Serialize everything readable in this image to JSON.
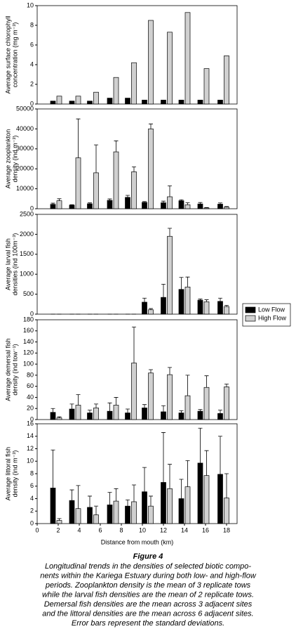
{
  "chart_data": [
    {
      "type": "bar",
      "ylabel": [
        "Average surface chlorophyll",
        "concentration (mg m⁻³)"
      ],
      "x": [
        1.8,
        3.6,
        5.3,
        7.2,
        8.9,
        10.5,
        12.3,
        14,
        15.8,
        17.7
      ],
      "xlim": [
        0,
        19
      ],
      "ylim": [
        0,
        10
      ],
      "yticks": [
        0,
        2,
        4,
        6,
        8,
        10
      ],
      "series": [
        {
          "color": "#000000",
          "values": [
            0.3,
            0.3,
            0.3,
            0.6,
            0.6,
            0.4,
            0.4,
            0.4,
            0.4,
            0.4
          ]
        },
        {
          "color": "#d0d0d0",
          "values": [
            0.8,
            0.8,
            1.2,
            2.7,
            4.2,
            8.5,
            7.3,
            9.3,
            3.6,
            4.9
          ]
        }
      ]
    },
    {
      "type": "bar",
      "ylabel": [
        "Average zooplankton",
        "density (ind m⁻³)"
      ],
      "x": [
        1.8,
        3.6,
        5.3,
        7.2,
        8.9,
        10.5,
        12.3,
        14,
        15.8,
        17.7
      ],
      "xlim": [
        0,
        19
      ],
      "ylim": [
        0,
        50000
      ],
      "yticks": [
        0,
        10000,
        20000,
        30000,
        40000,
        50000
      ],
      "series": [
        {
          "color": "#000000",
          "values": [
            2200,
            1800,
            2500,
            4200,
            5700,
            3200,
            3000,
            4000,
            2400,
            2300
          ],
          "errors": [
            600,
            200,
            500,
            700,
            1000,
            400,
            800,
            500,
            700,
            600
          ]
        },
        {
          "color": "#d0d0d0",
          "values": [
            4000,
            25500,
            18000,
            28500,
            18500,
            40000,
            6000,
            2000,
            400,
            800
          ],
          "errors": [
            1000,
            19500,
            14000,
            5500,
            2500,
            2500,
            5500,
            1000,
            200,
            300
          ]
        }
      ]
    },
    {
      "type": "bar",
      "ylabel": [
        "Average larval fish",
        "densities (ind 100m⁻³)"
      ],
      "x": [
        1.8,
        3.6,
        5.3,
        7.2,
        8.9,
        10.5,
        12.3,
        14,
        15.8,
        17.7
      ],
      "xlim": [
        0,
        19
      ],
      "ylim": [
        0,
        2500
      ],
      "yticks": [
        0,
        500,
        1000,
        1500,
        2000,
        2500
      ],
      "legend": "right",
      "series": [
        {
          "name": "Low Flow",
          "color": "#000000",
          "values": [
            0,
            0,
            0,
            0,
            0,
            300,
            420,
            620,
            350,
            320
          ],
          "errors": [
            0,
            0,
            0,
            0,
            0,
            100,
            330,
            300,
            30,
            80
          ]
        },
        {
          "name": "High Flow",
          "color": "#d0d0d0",
          "values": [
            0,
            0,
            0,
            0,
            0,
            110,
            1950,
            680,
            310,
            190
          ],
          "errors": [
            0,
            0,
            0,
            0,
            0,
            30,
            200,
            250,
            50,
            30
          ]
        }
      ]
    },
    {
      "type": "bar",
      "ylabel": [
        "Average demersal fish",
        "density (ind tow⁻¹)"
      ],
      "x": [
        1.8,
        3.6,
        5.3,
        7.2,
        8.9,
        10.5,
        12.3,
        14,
        15.8,
        17.7
      ],
      "xlim": [
        0,
        19
      ],
      "ylim": [
        0,
        180
      ],
      "yticks": [
        0,
        20,
        40,
        60,
        80,
        100,
        120,
        140,
        160,
        180
      ],
      "series": [
        {
          "color": "#000000",
          "values": [
            13,
            19,
            12,
            15,
            12,
            21,
            14,
            12,
            15,
            11
          ],
          "errors": [
            7,
            9,
            5,
            15,
            7,
            6,
            11,
            4,
            3,
            6
          ]
        },
        {
          "color": "#d0d0d0",
          "values": [
            3,
            26,
            21,
            26,
            102,
            84,
            81,
            43,
            58,
            59
          ],
          "errors": [
            2,
            19,
            7,
            14,
            65,
            6,
            13,
            37,
            21,
            5
          ]
        }
      ]
    },
    {
      "type": "bar",
      "ylabel": [
        "Average littoral fish",
        "density (ind m⁻³)"
      ],
      "xlabel": "Distance from mouth (km)",
      "x": [
        1.8,
        3.6,
        5.3,
        7.2,
        8.9,
        10.5,
        12.3,
        14,
        15.8,
        17.7
      ],
      "xlim": [
        0,
        19
      ],
      "xticks": [
        0,
        2,
        4,
        6,
        8,
        10,
        12,
        14,
        16,
        18
      ],
      "ylim": [
        0,
        16
      ],
      "yticks": [
        0,
        2,
        4,
        6,
        8,
        10,
        12,
        14,
        16
      ],
      "series": [
        {
          "color": "#000000",
          "values": [
            5.7,
            3.7,
            2.6,
            3.0,
            2.8,
            5.1,
            6.6,
            4.0,
            9.7,
            7.9
          ],
          "errors": [
            6.1,
            1.7,
            1.8,
            2.0,
            1.0,
            3.9,
            8.0,
            3.1,
            5.6,
            6.1
          ]
        },
        {
          "color": "#d0d0d0",
          "values": [
            0.5,
            2.4,
            1.4,
            3.6,
            3.5,
            2.8,
            5.6,
            5.9,
            7.7,
            4.1
          ],
          "errors": [
            0.3,
            3.7,
            1.4,
            2.0,
            2.7,
            1.6,
            3.9,
            4.2,
            4.0,
            3.9
          ]
        }
      ]
    }
  ],
  "caption": {
    "title": "Figure 4",
    "lines": [
      "Longitudinal trends in the densities of selected biotic compo-",
      "nents within the Kariega Estuary during both low- and high-flow",
      "periods. Zooplankton density is the mean of 3 replicate tows",
      "while the larval fish densities are the mean of 2 replicate tows.",
      "Demersal fish densities are the mean across 3 adjacent sites",
      "and the littoral densities are the mean across 6 adjacent sites.",
      "Error bars represent the standard deviations."
    ]
  }
}
